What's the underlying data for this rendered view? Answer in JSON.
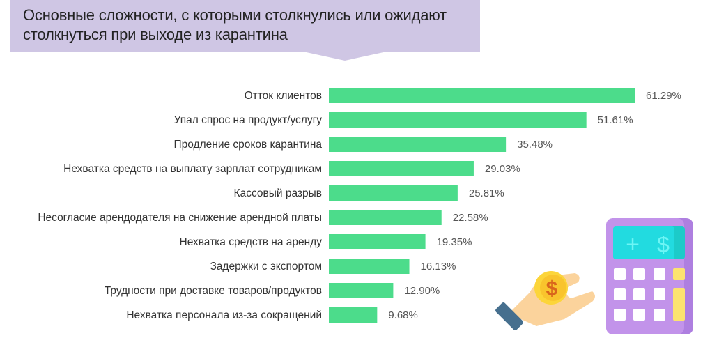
{
  "chart_data": {
    "type": "bar",
    "orientation": "horizontal",
    "title": "Основные сложности, с которыми столкнулись или ожидают столкнуться при выходе из карантина",
    "categories": [
      "Отток клиентов",
      "Упал спрос на продукт/услугу",
      "Продление сроков карантина",
      "Нехватка средств на выплату зарплат сотрудникам",
      "Кассовый разрыв",
      "Несогласие арендодателя на снижение арендной платы",
      "Нехватка средств на аренду",
      "Задержки с экспортом",
      "Трудности при доставке товаров/продуктов",
      "Нехватка персонала из-за сокращений"
    ],
    "values": [
      61.29,
      51.61,
      35.48,
      29.03,
      25.81,
      22.58,
      19.35,
      16.13,
      12.9,
      9.68
    ],
    "value_labels": [
      "61.29%",
      "51.61%",
      "35.48%",
      "29.03%",
      "25.81%",
      "22.58%",
      "19.35%",
      "16.13%",
      "12.90%",
      "9.68%"
    ],
    "xlabel": "",
    "ylabel": "",
    "grid": false,
    "colors": {
      "bar": "#4cdc8b",
      "banner": "#cfc6e4"
    }
  }
}
